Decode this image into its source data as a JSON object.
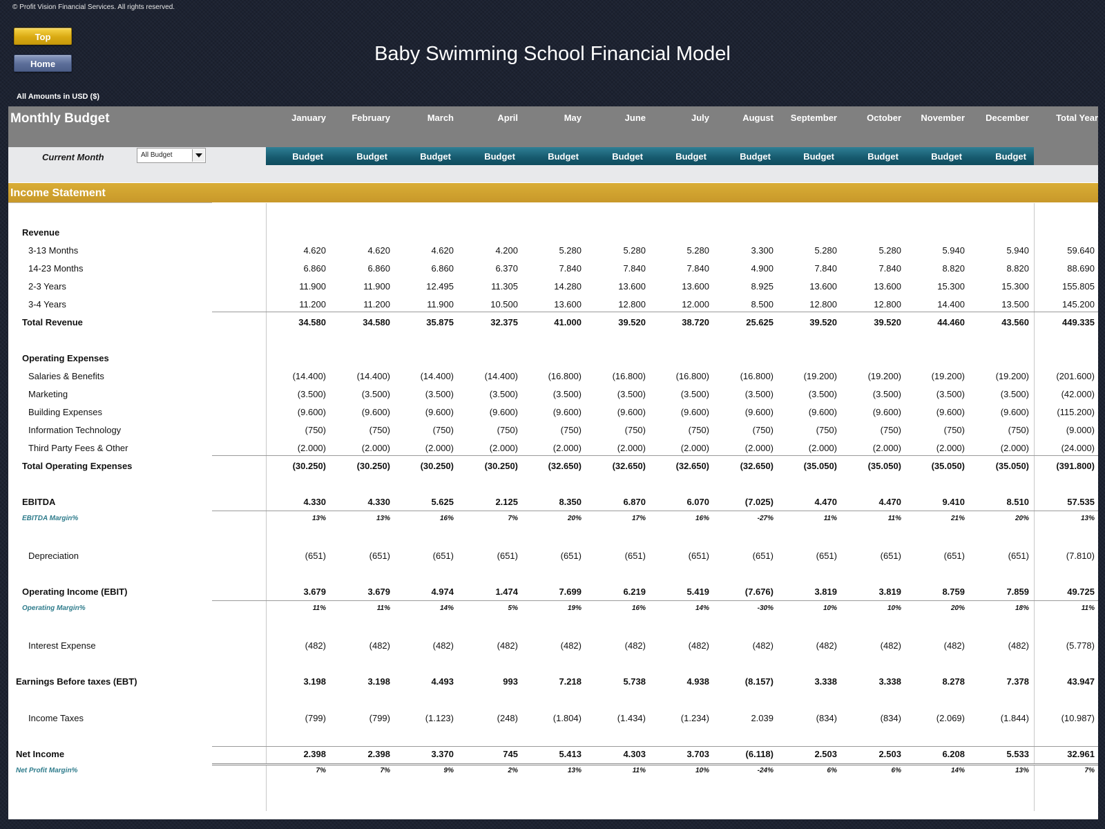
{
  "copyright": "© Profit Vision Financial Services. All rights reserved.",
  "buttons": {
    "top": "Top",
    "home": "Home"
  },
  "title": "Baby Swimming School Financial Model",
  "amounts_label": "All Amounts in  USD ($)",
  "header": {
    "title": "Monthly Budget",
    "months": [
      "January",
      "February",
      "March",
      "April",
      "May",
      "June",
      "July",
      "August",
      "September",
      "October",
      "November",
      "December"
    ],
    "total": "Total Year"
  },
  "control": {
    "current_month_label": "Current Month",
    "select_value": "All Budget",
    "budget_label": "Budget"
  },
  "section_title": "Income Statement",
  "rows": [
    {
      "label": "Revenue",
      "type": "heading",
      "values": []
    },
    {
      "label": "3-13 Months",
      "type": "item",
      "values": [
        "4.620",
        "4.620",
        "4.620",
        "4.200",
        "5.280",
        "5.280",
        "5.280",
        "3.300",
        "5.280",
        "5.280",
        "5.940",
        "5.940",
        "59.640"
      ]
    },
    {
      "label": "14-23 Months",
      "type": "item",
      "values": [
        "6.860",
        "6.860",
        "6.860",
        "6.370",
        "7.840",
        "7.840",
        "7.840",
        "4.900",
        "7.840",
        "7.840",
        "8.820",
        "8.820",
        "88.690"
      ]
    },
    {
      "label": "2-3 Years",
      "type": "item",
      "values": [
        "11.900",
        "11.900",
        "12.495",
        "11.305",
        "14.280",
        "13.600",
        "13.600",
        "8.925",
        "13.600",
        "13.600",
        "15.300",
        "15.300",
        "155.805"
      ]
    },
    {
      "label": "3-4 Years",
      "type": "item",
      "values": [
        "11.200",
        "11.200",
        "11.900",
        "10.500",
        "13.600",
        "12.800",
        "12.000",
        "8.500",
        "12.800",
        "12.800",
        "14.400",
        "13.500",
        "145.200"
      ]
    },
    {
      "label": "Total Revenue",
      "type": "total",
      "values": [
        "34.580",
        "34.580",
        "35.875",
        "32.375",
        "41.000",
        "39.520",
        "38.720",
        "25.625",
        "39.520",
        "39.520",
        "44.460",
        "43.560",
        "449.335"
      ]
    },
    {
      "label": "Operating Expenses",
      "type": "heading",
      "values": []
    },
    {
      "label": "Salaries & Benefits",
      "type": "item",
      "values": [
        "(14.400)",
        "(14.400)",
        "(14.400)",
        "(14.400)",
        "(16.800)",
        "(16.800)",
        "(16.800)",
        "(16.800)",
        "(19.200)",
        "(19.200)",
        "(19.200)",
        "(19.200)",
        "(201.600)"
      ]
    },
    {
      "label": "Marketing",
      "type": "item",
      "values": [
        "(3.500)",
        "(3.500)",
        "(3.500)",
        "(3.500)",
        "(3.500)",
        "(3.500)",
        "(3.500)",
        "(3.500)",
        "(3.500)",
        "(3.500)",
        "(3.500)",
        "(3.500)",
        "(42.000)"
      ]
    },
    {
      "label": "Building Expenses",
      "type": "item",
      "values": [
        "(9.600)",
        "(9.600)",
        "(9.600)",
        "(9.600)",
        "(9.600)",
        "(9.600)",
        "(9.600)",
        "(9.600)",
        "(9.600)",
        "(9.600)",
        "(9.600)",
        "(9.600)",
        "(115.200)"
      ]
    },
    {
      "label": "Information Technology",
      "type": "item",
      "values": [
        "(750)",
        "(750)",
        "(750)",
        "(750)",
        "(750)",
        "(750)",
        "(750)",
        "(750)",
        "(750)",
        "(750)",
        "(750)",
        "(750)",
        "(9.000)"
      ]
    },
    {
      "label": "Third Party Fees & Other",
      "type": "item",
      "values": [
        "(2.000)",
        "(2.000)",
        "(2.000)",
        "(2.000)",
        "(2.000)",
        "(2.000)",
        "(2.000)",
        "(2.000)",
        "(2.000)",
        "(2.000)",
        "(2.000)",
        "(2.000)",
        "(24.000)"
      ]
    },
    {
      "label": "Total Operating Expenses",
      "type": "total",
      "values": [
        "(30.250)",
        "(30.250)",
        "(30.250)",
        "(30.250)",
        "(32.650)",
        "(32.650)",
        "(32.650)",
        "(32.650)",
        "(35.050)",
        "(35.050)",
        "(35.050)",
        "(35.050)",
        "(391.800)"
      ]
    },
    {
      "label": "EBITDA",
      "type": "total",
      "values": [
        "4.330",
        "4.330",
        "5.625",
        "2.125",
        "8.350",
        "6.870",
        "6.070",
        "(7.025)",
        "4.470",
        "4.470",
        "9.410",
        "8.510",
        "57.535"
      ]
    },
    {
      "label": "EBITDA Margin%",
      "type": "margin",
      "values": [
        "13%",
        "13%",
        "16%",
        "7%",
        "20%",
        "17%",
        "16%",
        "-27%",
        "11%",
        "11%",
        "21%",
        "20%",
        "13%"
      ]
    },
    {
      "label": "Depreciation",
      "type": "item",
      "values": [
        "(651)",
        "(651)",
        "(651)",
        "(651)",
        "(651)",
        "(651)",
        "(651)",
        "(651)",
        "(651)",
        "(651)",
        "(651)",
        "(651)",
        "(7.810)"
      ]
    },
    {
      "label": "Operating Income (EBIT)",
      "type": "total",
      "values": [
        "3.679",
        "3.679",
        "4.974",
        "1.474",
        "7.699",
        "6.219",
        "5.419",
        "(7.676)",
        "3.819",
        "3.819",
        "8.759",
        "7.859",
        "49.725"
      ]
    },
    {
      "label": "Operating Margin%",
      "type": "margin",
      "values": [
        "11%",
        "11%",
        "14%",
        "5%",
        "19%",
        "16%",
        "14%",
        "-30%",
        "10%",
        "10%",
        "20%",
        "18%",
        "11%"
      ]
    },
    {
      "label": "Interest Expense",
      "type": "item",
      "values": [
        "(482)",
        "(482)",
        "(482)",
        "(482)",
        "(482)",
        "(482)",
        "(482)",
        "(482)",
        "(482)",
        "(482)",
        "(482)",
        "(482)",
        "(5.778)"
      ]
    },
    {
      "label": "Earnings Before taxes (EBT)",
      "type": "total",
      "values": [
        "3.198",
        "3.198",
        "4.493",
        "993",
        "7.218",
        "5.738",
        "4.938",
        "(8.157)",
        "3.338",
        "3.338",
        "8.278",
        "7.378",
        "43.947"
      ]
    },
    {
      "label": "Income Taxes",
      "type": "item",
      "values": [
        "(799)",
        "(799)",
        "(1.123)",
        "(248)",
        "(1.804)",
        "(1.434)",
        "(1.234)",
        "2.039",
        "(834)",
        "(834)",
        "(2.069)",
        "(1.844)",
        "(10.987)"
      ]
    },
    {
      "label": "Net Income",
      "type": "total",
      "values": [
        "2.398",
        "2.398",
        "3.370",
        "745",
        "5.413",
        "4.303",
        "3.703",
        "(6.118)",
        "2.503",
        "2.503",
        "6.208",
        "5.533",
        "32.961"
      ]
    },
    {
      "label": "Net Profit Margin%",
      "type": "margin",
      "values": [
        "7%",
        "7%",
        "9%",
        "2%",
        "13%",
        "11%",
        "10%",
        "-24%",
        "6%",
        "6%",
        "14%",
        "13%",
        "7%"
      ]
    }
  ]
}
